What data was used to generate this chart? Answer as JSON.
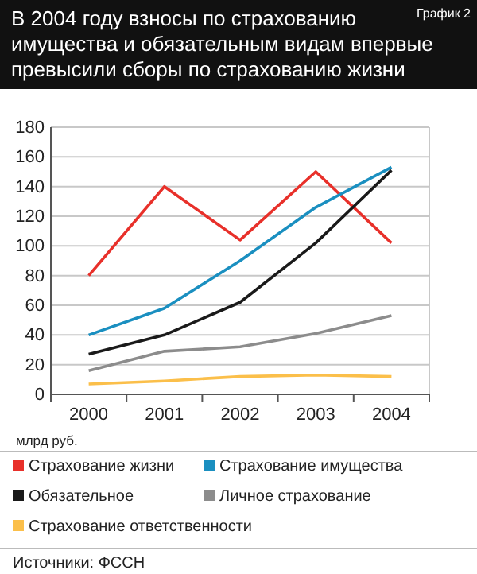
{
  "chart_data": {
    "type": "line",
    "title": "В 2004 году взносы по страхованию имущества и обязательным видам впервые превысили сборы по страхованию жизни",
    "ylabel": "млрд руб.",
    "annotations": [
      "График 2",
      "Источники: ФССН"
    ],
    "categories": [
      "2000",
      "2001",
      "2002",
      "2003",
      "2004"
    ],
    "series": [
      {
        "name": "Страхование жизни",
        "color": "#e8302a",
        "values": [
          80,
          140,
          104,
          150,
          102
        ]
      },
      {
        "name": "Страхование имущества",
        "color": "#1a8fc0",
        "values": [
          40,
          58,
          90,
          126,
          153
        ]
      },
      {
        "name": "Обязательное",
        "color": "#1a1a1a",
        "values": [
          27,
          40,
          62,
          102,
          151
        ]
      },
      {
        "name": "Личное страхование",
        "color": "#8c8c8c",
        "values": [
          16,
          29,
          32,
          41,
          53
        ]
      },
      {
        "name": "Страхование ответственности",
        "color": "#fbbf4a",
        "values": [
          7,
          9,
          12,
          13,
          12
        ]
      }
    ],
    "ylim": [
      0,
      180
    ],
    "yticks": [
      0,
      20,
      40,
      60,
      80,
      100,
      120,
      140,
      160,
      180
    ],
    "grid": "y",
    "legend": "bottom",
    "marker": "none",
    "line_style": "solid"
  }
}
